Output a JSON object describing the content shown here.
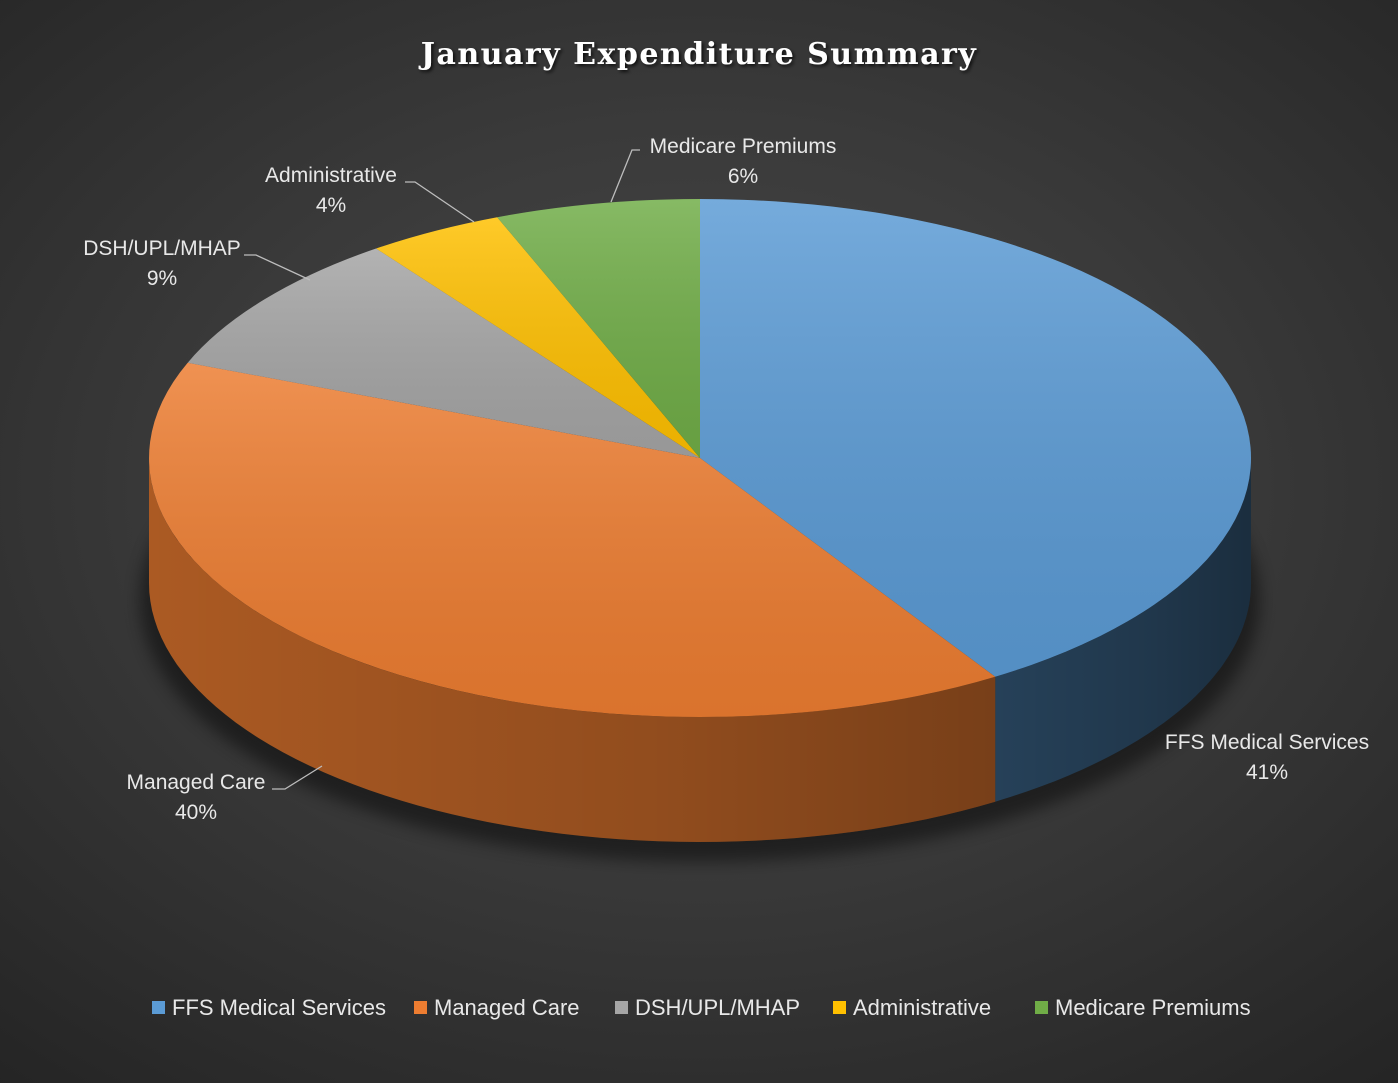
{
  "chart_data": {
    "type": "pie",
    "title": "January Expenditure Summary",
    "categories": [
      "FFS Medical Services",
      "Managed Care",
      "DSH/UPL/MHAP",
      "Administrative",
      "Medicare Premiums"
    ],
    "values": [
      41,
      40,
      9,
      4,
      6
    ],
    "labels": [
      "41%",
      "40%",
      "9%",
      "4%",
      "6%"
    ],
    "unit": "%",
    "colors": [
      "#5b9bd5",
      "#ed7d31",
      "#a5a5a5",
      "#ffc000",
      "#70ad47"
    ],
    "style": "3d",
    "legend_position": "bottom"
  }
}
